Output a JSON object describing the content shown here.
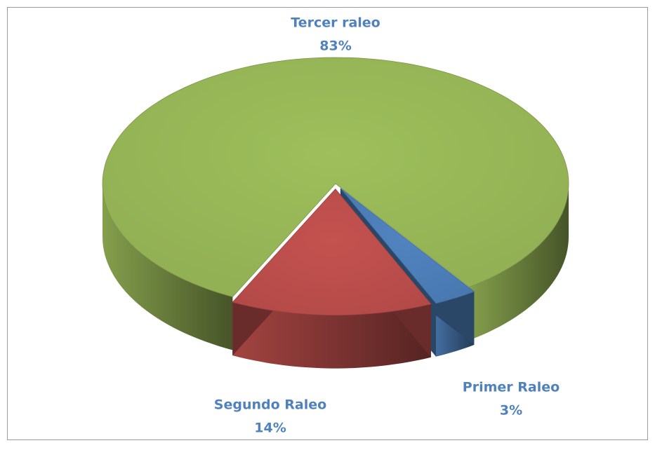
{
  "chart_data": {
    "type": "pie",
    "categories": [
      "Primer Raleo",
      "Segundo Raleo",
      "Tercer raleo"
    ],
    "values": [
      3,
      14,
      83
    ],
    "value_labels": [
      "3%",
      "14%",
      "83%"
    ],
    "colors": [
      "#4f81bd",
      "#c0504d",
      "#9bbb59"
    ]
  }
}
